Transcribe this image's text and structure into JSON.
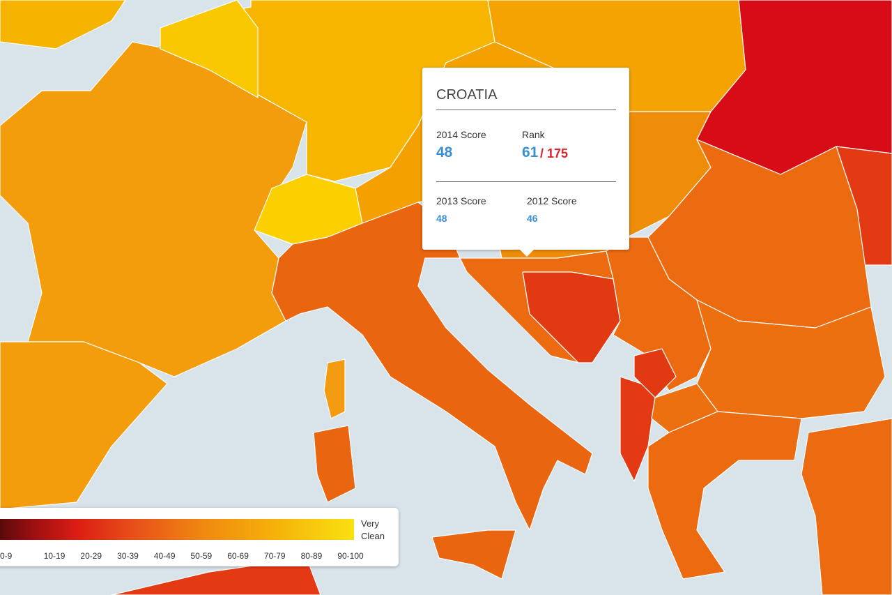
{
  "tooltip": {
    "country": "CROATIA",
    "score_2014_label": "2014 Score",
    "score_2014": 48,
    "rank_label": "Rank",
    "rank": 61,
    "rank_total": "/ 175",
    "score_2013_label": "2013 Score",
    "score_2013": 48,
    "score_2012_label": "2012 Score",
    "score_2012": 46
  },
  "legend": {
    "ranges": [
      "0-9",
      "10-19",
      "20-29",
      "30-39",
      "40-49",
      "50-59",
      "60-69",
      "70-79",
      "80-89",
      "90-100"
    ],
    "end_label": "Very Clean"
  }
}
